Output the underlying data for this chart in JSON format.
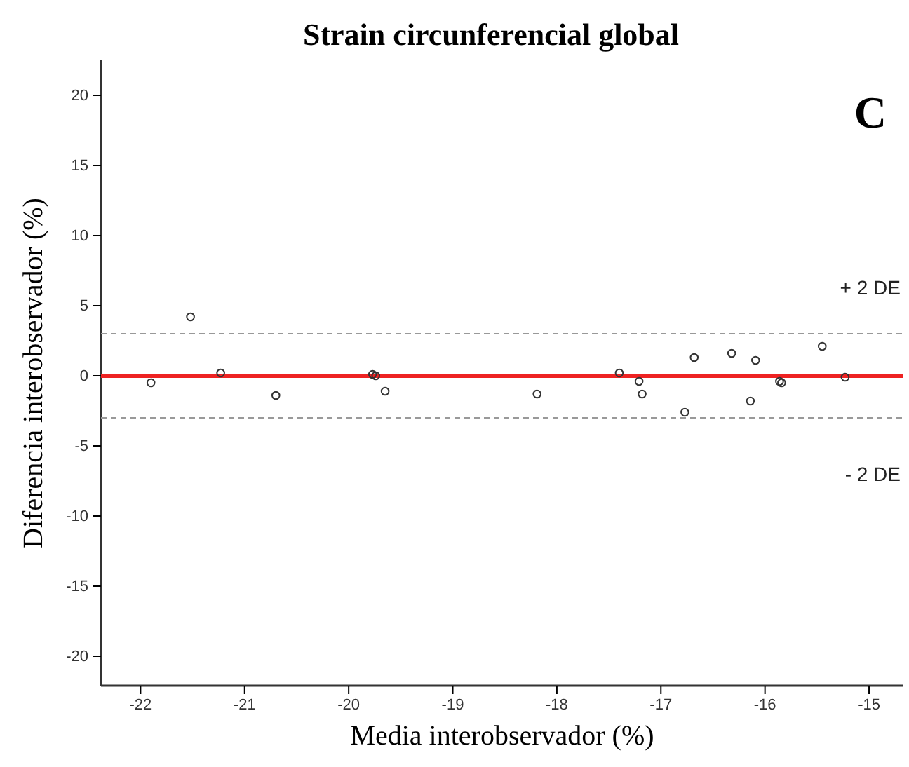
{
  "chart_data": {
    "type": "scatter",
    "title": "Strain circunferencial global",
    "xlabel": "Media interobservador (%)",
    "ylabel": "Diferencia interobservador (%)",
    "x": [
      -21.9,
      -21.52,
      -21.23,
      -20.7,
      -19.77,
      -19.74,
      -19.65,
      -18.19,
      -17.4,
      -17.21,
      -17.18,
      -16.77,
      -16.68,
      -16.32,
      -16.14,
      -16.09,
      -15.86,
      -15.84,
      -15.45,
      -15.23
    ],
    "series": [
      {
        "color": "#333333",
        "values": [
          -0.5,
          4.2,
          0.2,
          -1.4,
          0.1,
          0.0,
          -1.1,
          -1.3,
          0.2,
          -0.4,
          -1.3,
          -2.6,
          1.3,
          1.6,
          -1.8,
          1.1,
          -0.4,
          -0.5,
          2.1,
          -0.1
        ]
      }
    ],
    "marker": "circle",
    "xlim": [
      -22.38,
      -14.67
    ],
    "ylim": [
      -22.1,
      22.5
    ],
    "xticks": [
      -22,
      -21,
      -20,
      -19,
      -18,
      -17,
      -16,
      -15
    ],
    "yticks": [
      -20,
      -15,
      -10,
      -5,
      0,
      5,
      10,
      15,
      20
    ],
    "grid": false,
    "ref_lines": [
      {
        "axis": "y",
        "value": 3.0,
        "label": "+ 2 DE",
        "color": "#999999",
        "line_style": "dashed"
      },
      {
        "axis": "y",
        "value": -3.0,
        "label": "- 2 DE",
        "color": "#999999",
        "line_style": "dashed"
      },
      {
        "axis": "y",
        "value": 0,
        "label": null,
        "color": "#ee2222",
        "line_style": "solid"
      }
    ],
    "annotations": [
      "C"
    ]
  }
}
